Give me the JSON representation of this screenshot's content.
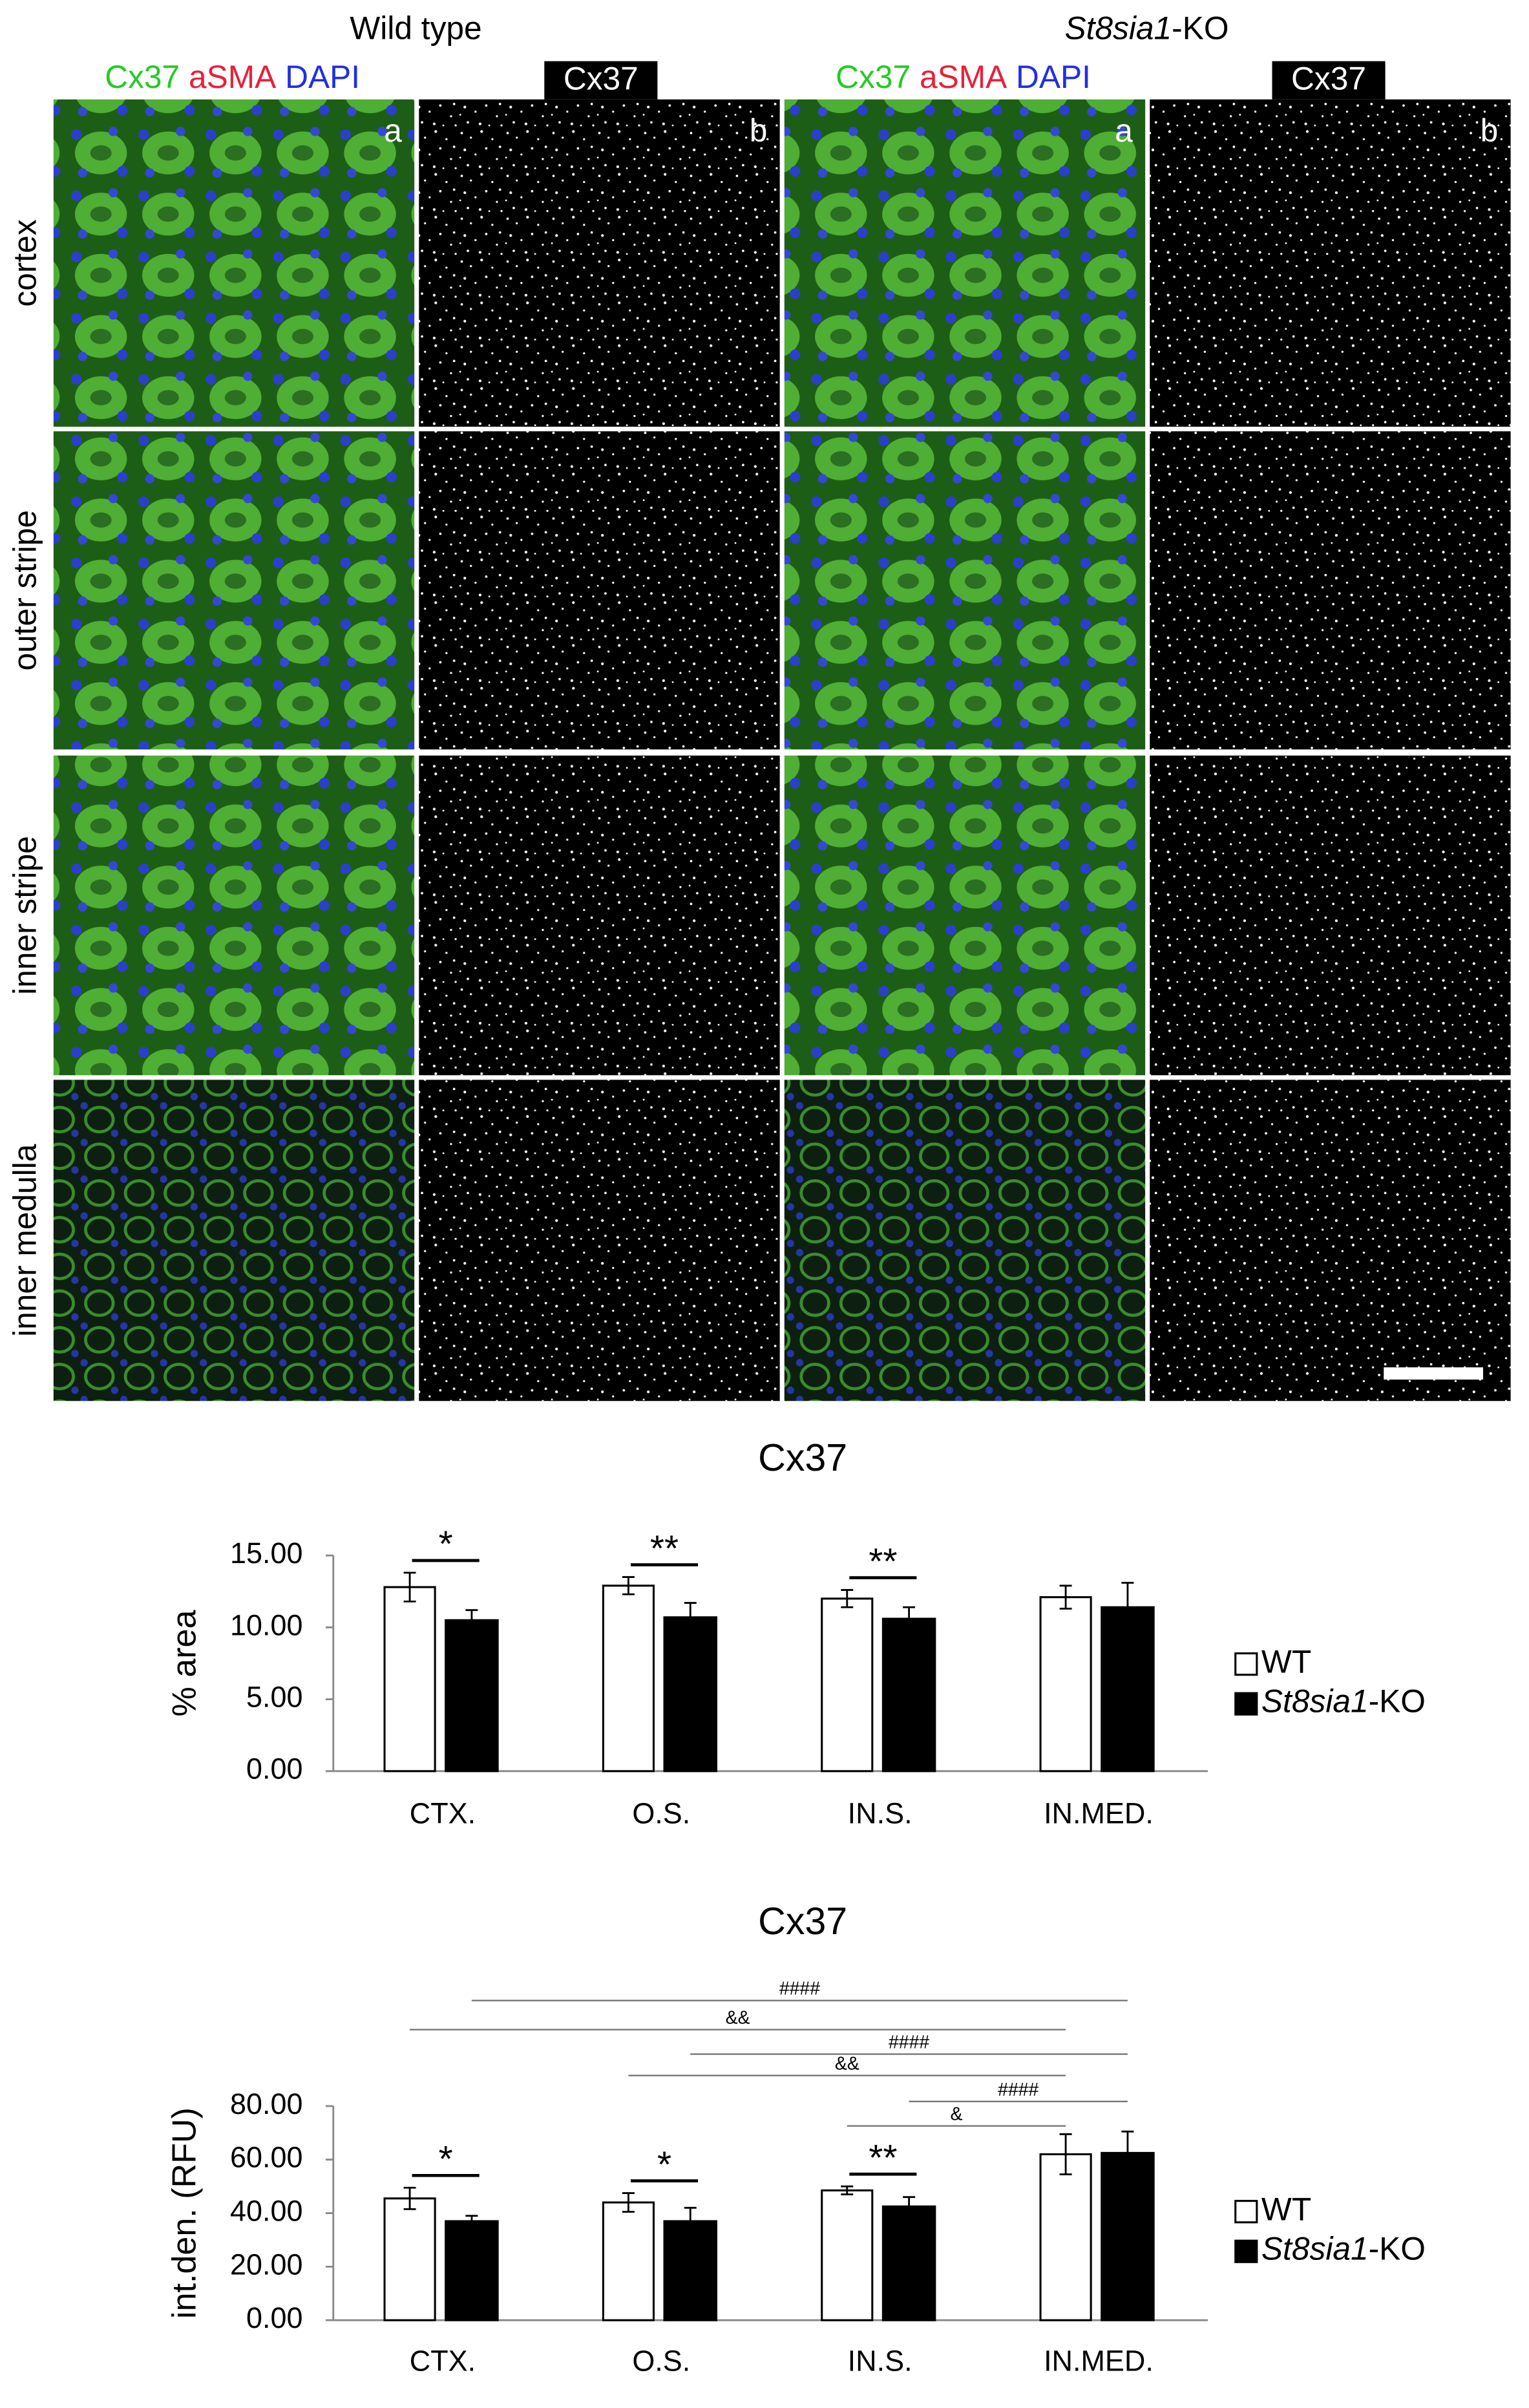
{
  "figure": {
    "header": {
      "left": "Wild type",
      "right": "St8sia1-KO"
    },
    "stains": [
      "Cx37",
      "aSMA",
      "DAPI"
    ],
    "channel": "Cx37",
    "rows": [
      "cortex",
      "outer stripe",
      "inner stripe",
      "inner medulla"
    ],
    "panel_labels": [
      "a",
      "b"
    ]
  },
  "chart_data": [
    {
      "type": "bar",
      "title": "Cx37",
      "y_label": "% area",
      "categories": [
        "CTX.",
        "O.S.",
        "IN.S.",
        "IN.MED."
      ],
      "series": [
        {
          "name": "WT",
          "color": "#ffffff",
          "values": [
            12.8,
            12.9,
            12.0,
            12.1
          ],
          "errors": [
            1.0,
            0.6,
            0.6,
            0.8
          ]
        },
        {
          "name": "St8sia1-KO",
          "color": "#000000",
          "values": [
            10.5,
            10.7,
            10.6,
            11.4
          ],
          "errors": [
            0.7,
            1.0,
            0.8,
            1.7
          ]
        }
      ],
      "ylim": [
        0,
        15
      ],
      "yticks": [
        {
          "value": 0,
          "label": "0.00"
        },
        {
          "value": 5,
          "label": "5.00"
        },
        {
          "value": 10,
          "label": "10.00"
        },
        {
          "value": 15,
          "label": "15.00"
        }
      ],
      "group_marks": [
        "*",
        "**",
        "**",
        null
      ],
      "legend": "right"
    },
    {
      "type": "bar",
      "title": "Cx37",
      "y_label": "int.den. (RFU)",
      "categories": [
        "CTX.",
        "O.S.",
        "IN.S.",
        "IN.MED."
      ],
      "series": [
        {
          "name": "WT",
          "color": "#ffffff",
          "values": [
            45.5,
            44,
            48.5,
            62
          ],
          "errors": [
            4,
            3.5,
            1.5,
            7.5
          ]
        },
        {
          "name": "St8sia1-KO",
          "color": "#000000",
          "values": [
            37,
            37,
            42.5,
            62.5
          ],
          "errors": [
            2,
            5,
            3.5,
            8
          ]
        }
      ],
      "ylim": [
        0,
        80
      ],
      "yticks": [
        {
          "value": 0,
          "label": "0.00"
        },
        {
          "value": 20,
          "label": "20.00"
        },
        {
          "value": 40,
          "label": "40.00"
        },
        {
          "value": 60,
          "label": "60.00"
        },
        {
          "value": 80,
          "label": "80.00"
        }
      ],
      "group_marks": [
        "*",
        "*",
        "**",
        null
      ],
      "comparisons": [
        "####",
        "&&",
        "####",
        "&&",
        "####",
        "&"
      ],
      "legend": "right"
    }
  ]
}
